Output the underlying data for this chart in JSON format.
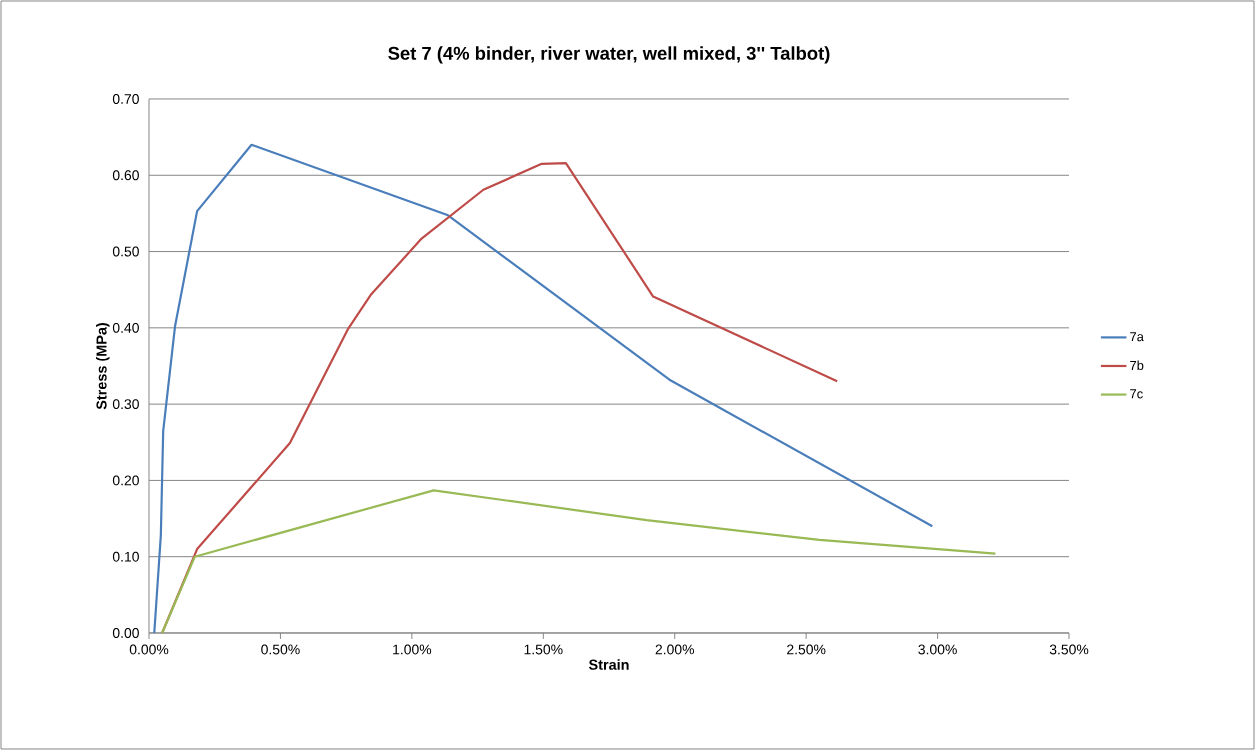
{
  "chart_data": {
    "type": "line",
    "title": "Set 7 (4% binder, river water, well mixed, 3'' Talbot)",
    "xlabel": "Strain",
    "ylabel": "Stress (MPa)",
    "xlim": [
      0,
      3.5
    ],
    "ylim": [
      0,
      0.7
    ],
    "xticks": [
      {
        "value": 0,
        "label": "0.00%"
      },
      {
        "value": 0.5,
        "label": "0.50%"
      },
      {
        "value": 1,
        "label": "1.00%"
      },
      {
        "value": 1.5,
        "label": "1.50%"
      },
      {
        "value": 2,
        "label": "2.00%"
      },
      {
        "value": 2.5,
        "label": "2.50%"
      },
      {
        "value": 3,
        "label": "3.00%"
      },
      {
        "value": 3.5,
        "label": "3.50%"
      }
    ],
    "yticks": [
      {
        "value": 0,
        "label": "0.00"
      },
      {
        "value": 0.1,
        "label": "0.10"
      },
      {
        "value": 0.2,
        "label": "0.20"
      },
      {
        "value": 0.3,
        "label": "0.30"
      },
      {
        "value": 0.4,
        "label": "0.40"
      },
      {
        "value": 0.5,
        "label": "0.50"
      },
      {
        "value": 0.6,
        "label": "0.60"
      },
      {
        "value": 0.7,
        "label": "0.70"
      }
    ],
    "grid": "y",
    "legend": "right",
    "marker": "none",
    "line_style": "solid",
    "series": [
      {
        "name": "7a",
        "color": "#4a7ebb",
        "x": [
          0.02,
          0.045,
          0.054,
          0.099,
          0.183,
          0.39,
          1.135,
          1.98,
          2.98
        ],
        "values": [
          0,
          0.128,
          0.265,
          0.402,
          0.553,
          0.64,
          0.548,
          0.332,
          0.14
        ]
      },
      {
        "name": "7b",
        "color": "#be4b48",
        "x": [
          0.05,
          0.183,
          0.536,
          0.758,
          0.843,
          1.037,
          1.272,
          1.494,
          1.586,
          1.918,
          2.618
        ],
        "values": [
          0,
          0.11,
          0.249,
          0.399,
          0.443,
          0.517,
          0.581,
          0.615,
          0.616,
          0.441,
          0.33
        ]
      },
      {
        "name": "7c",
        "color": "#98b954",
        "x": [
          0.05,
          0.174,
          1.083,
          1.893,
          2.55,
          3.22
        ],
        "values": [
          0,
          0.1,
          0.187,
          0.148,
          0.122,
          0.104
        ]
      }
    ]
  }
}
